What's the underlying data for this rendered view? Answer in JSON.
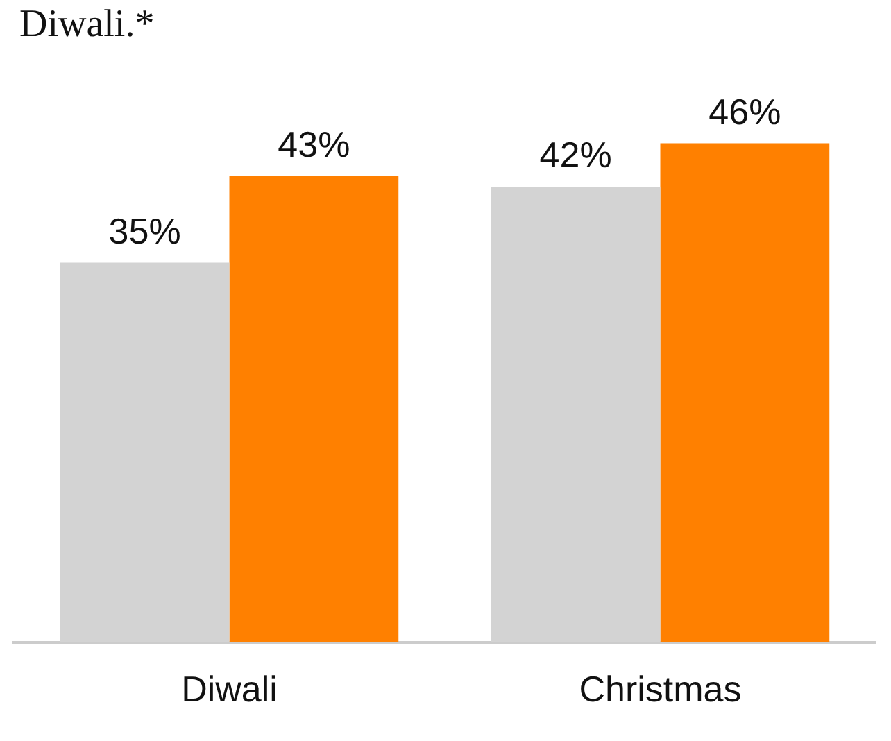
{
  "chart_data": {
    "type": "bar",
    "title": "Diwali.*",
    "categories": [
      "Diwali",
      "Christmas"
    ],
    "series": [
      {
        "color": "#d3d3d3",
        "values": [
          35,
          42
        ],
        "value_labels": [
          "35%",
          "42%"
        ]
      },
      {
        "color": "#ff8000",
        "values": [
          43,
          46
        ],
        "value_labels": [
          "43%",
          "46%"
        ]
      }
    ],
    "grid": false,
    "legend": false
  }
}
